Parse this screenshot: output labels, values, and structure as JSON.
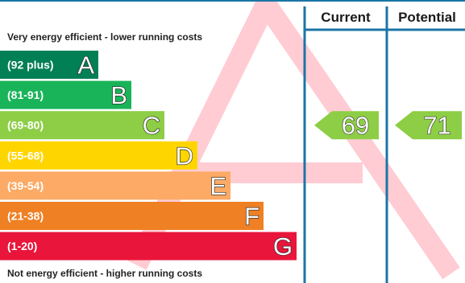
{
  "chart_data": {
    "type": "bar",
    "top_note": "Very energy efficient - lower running costs",
    "bottom_note": "Not energy efficient - higher running costs",
    "columns": [
      "Current",
      "Potential"
    ],
    "bands": [
      {
        "range": "(92 plus)",
        "letter": "A",
        "color": "#008054",
        "min": 92,
        "max": 100
      },
      {
        "range": "(81-91)",
        "letter": "B",
        "color": "#19b459",
        "min": 81,
        "max": 91
      },
      {
        "range": "(69-80)",
        "letter": "C",
        "color": "#8dce46",
        "min": 69,
        "max": 80
      },
      {
        "range": "(55-68)",
        "letter": "D",
        "color": "#ffd500",
        "min": 55,
        "max": 68
      },
      {
        "range": "(39-54)",
        "letter": "E",
        "color": "#fcaa65",
        "min": 39,
        "max": 54
      },
      {
        "range": "(21-38)",
        "letter": "F",
        "color": "#ef8023",
        "min": 21,
        "max": 38
      },
      {
        "range": "(1-20)",
        "letter": "G",
        "color": "#e9153b",
        "min": 1,
        "max": 20
      }
    ],
    "ratings": [
      {
        "column": "Current",
        "value": 69,
        "label": "69",
        "band": "C",
        "color": "#8dce46"
      },
      {
        "column": "Potential",
        "value": 71,
        "label": "71",
        "band": "C",
        "color": "#8dce46"
      }
    ],
    "border_color": "#1b75a6"
  }
}
